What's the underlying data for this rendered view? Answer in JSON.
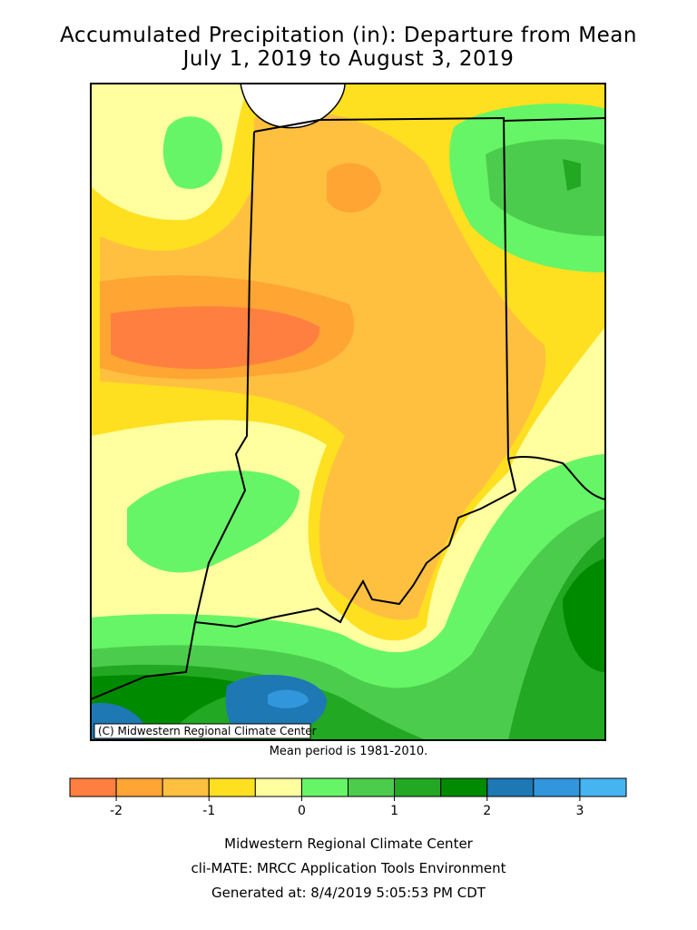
{
  "title": "Accumulated Precipitation (in): Departure from Mean",
  "subtitle": "July 1, 2019 to August 3, 2019",
  "copyright": "(C) Midwestern Regional Climate Center",
  "note": "Mean period is 1981-2010.",
  "legend": {
    "colors": [
      "#ff7f40",
      "#ffa533",
      "#ffc040",
      "#ffe020",
      "#ffffa0",
      "#66f566",
      "#4ccc4c",
      "#22a822",
      "#008a00",
      "#1e78b4",
      "#3296dc",
      "#46b4f0"
    ],
    "range": [
      -2.5,
      3.5
    ],
    "ticks": [
      -2,
      -1,
      0,
      1,
      2,
      3
    ]
  },
  "footer": [
    "Midwestern Regional Climate Center",
    "cli-MATE: MRCC Application Tools Environment",
    "Generated at: 8/4/2019 5:05:53 PM CDT"
  ]
}
